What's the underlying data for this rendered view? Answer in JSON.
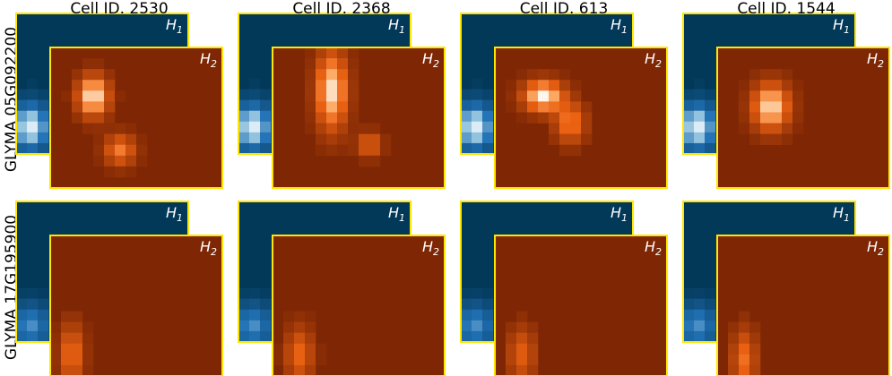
{
  "columns": [
    {
      "title": "Cell ID. 2530"
    },
    {
      "title": "Cell ID. 2368"
    },
    {
      "title": "Cell ID. 613"
    },
    {
      "title": "Cell ID. 1544"
    }
  ],
  "rows": [
    {
      "label": "GLYMA 05G092200"
    },
    {
      "label": "GLYMA 17G195900"
    }
  ],
  "panel_labels": {
    "h1": {
      "base": "H",
      "sub": "1"
    },
    "h2": {
      "base": "H",
      "sub": "2"
    }
  }
}
